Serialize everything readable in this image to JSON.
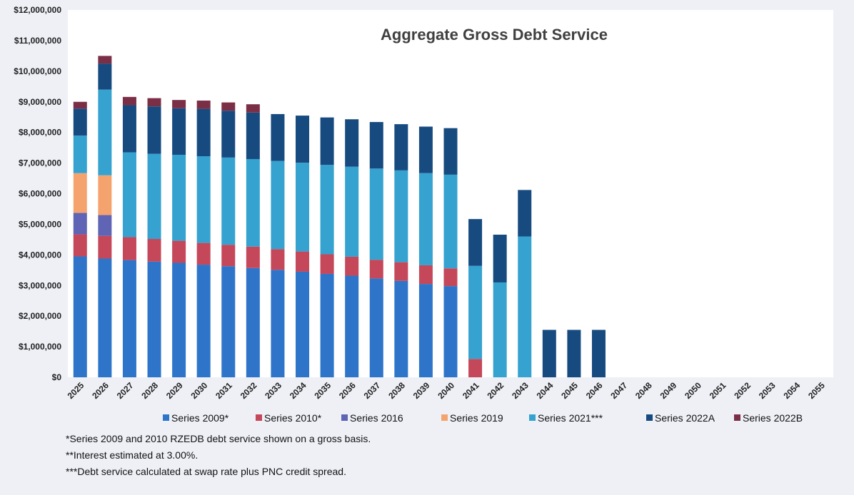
{
  "chart_data": {
    "type": "bar",
    "stacked": true,
    "title": "Aggregate Gross Debt Service",
    "xlabel": "",
    "ylabel": "",
    "ylim": [
      0,
      12000000
    ],
    "yticks": [
      "$0",
      "$1,000,000",
      "$2,000,000",
      "$3,000,000",
      "$4,000,000",
      "$5,000,000",
      "$6,000,000",
      "$7,000,000",
      "$8,000,000",
      "$9,000,000",
      "$10,000,000",
      "$11,000,000",
      "$12,000,000"
    ],
    "grid": false,
    "legend_position": "bottom",
    "categories": [
      "2025",
      "2026",
      "2027",
      "2028",
      "2029",
      "2030",
      "2031",
      "2032",
      "2033",
      "2034",
      "2035",
      "2036",
      "2037",
      "2038",
      "2039",
      "2040",
      "2041",
      "2042",
      "2043",
      "2044",
      "2045",
      "2046",
      "2047",
      "2048",
      "2049",
      "2050",
      "2051",
      "2052",
      "2053",
      "2054",
      "2055"
    ],
    "series": [
      {
        "name": "Series 2009*",
        "color": "#2e75c9",
        "values": [
          3950000,
          3880000,
          3830000,
          3780000,
          3740000,
          3680000,
          3630000,
          3570000,
          3510000,
          3450000,
          3380000,
          3320000,
          3230000,
          3150000,
          3050000,
          2980000,
          0,
          0,
          0,
          0,
          0,
          0,
          0,
          0,
          0,
          0,
          0,
          0,
          0,
          0,
          0
        ]
      },
      {
        "name": "Series 2010*",
        "color": "#c5475a",
        "values": [
          720000,
          740000,
          750000,
          740000,
          720000,
          710000,
          700000,
          700000,
          680000,
          660000,
          640000,
          620000,
          610000,
          610000,
          610000,
          580000,
          600000,
          0,
          0,
          0,
          0,
          0,
          0,
          0,
          0,
          0,
          0,
          0,
          0,
          0,
          0
        ]
      },
      {
        "name": "Series 2016",
        "color": "#5f64b4",
        "values": [
          700000,
          680000,
          0,
          0,
          0,
          0,
          0,
          0,
          0,
          0,
          0,
          0,
          0,
          0,
          0,
          0,
          0,
          0,
          0,
          0,
          0,
          0,
          0,
          0,
          0,
          0,
          0,
          0,
          0,
          0,
          0
        ]
      },
      {
        "name": "Series 2019",
        "color": "#f5a36e",
        "values": [
          1300000,
          1300000,
          0,
          0,
          0,
          0,
          0,
          0,
          0,
          0,
          0,
          0,
          0,
          0,
          0,
          0,
          0,
          0,
          0,
          0,
          0,
          0,
          0,
          0,
          0,
          0,
          0,
          0,
          0,
          0,
          0
        ]
      },
      {
        "name": "Series 2021***",
        "color": "#35a2cf",
        "values": [
          1230000,
          2800000,
          2770000,
          2780000,
          2810000,
          2830000,
          2850000,
          2860000,
          2880000,
          2900000,
          2920000,
          2940000,
          2980000,
          3000000,
          3010000,
          3060000,
          3040000,
          3100000,
          4600000,
          0,
          0,
          0,
          0,
          0,
          0,
          0,
          0,
          0,
          0,
          0,
          0
        ]
      },
      {
        "name": "Series 2022A",
        "color": "#174b80",
        "values": [
          880000,
          850000,
          1540000,
          1550000,
          1520000,
          1550000,
          1530000,
          1520000,
          1530000,
          1540000,
          1550000,
          1550000,
          1520000,
          1510000,
          1520000,
          1520000,
          1530000,
          1560000,
          1520000,
          1550000,
          1550000,
          1550000,
          0,
          0,
          0,
          0,
          0,
          0,
          0,
          0,
          0
        ]
      },
      {
        "name": "Series 2022B",
        "color": "#7b2f47",
        "values": [
          220000,
          250000,
          270000,
          270000,
          270000,
          270000,
          270000,
          270000,
          0,
          0,
          0,
          0,
          0,
          0,
          0,
          0,
          0,
          0,
          0,
          0,
          0,
          0,
          0,
          0,
          0,
          0,
          0,
          0,
          0,
          0,
          0
        ]
      }
    ],
    "footnotes": [
      "*Series 2009 and 2010 RZEDB debt service shown on a gross basis.",
      "**Interest estimated at 3.00%.",
      "***Debt service calculated at swap rate plus PNC credit spread."
    ]
  }
}
